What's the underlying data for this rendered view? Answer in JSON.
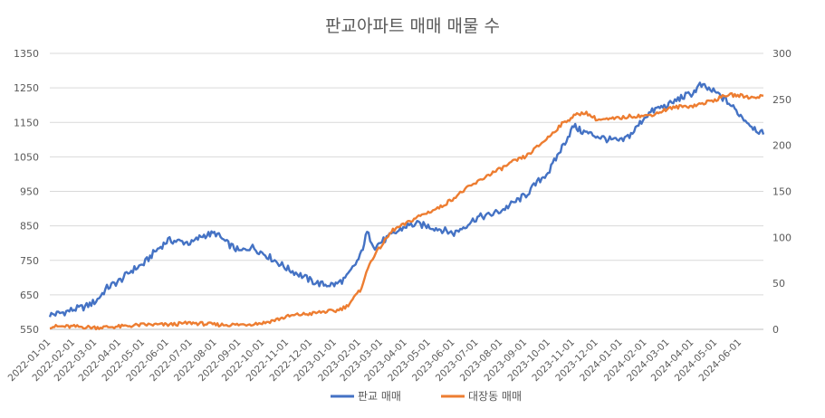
{
  "chart_data": {
    "type": "line",
    "title": "판교아파트 매매 매물 수",
    "xlabel": "",
    "ylabel": "",
    "x_ticks": [
      "2022-01-01",
      "2022-02-01",
      "2022-03-01",
      "2022-04-01",
      "2022-05-01",
      "2022-06-01",
      "2022-07-01",
      "2022-08-01",
      "2022-09-01",
      "2022-10-01",
      "2022-11-01",
      "2022-12-01",
      "2023-01-01",
      "2023-02-01",
      "2023-03-01",
      "2023-04-01",
      "2023-05-01",
      "2023-06-01",
      "2023-07-01",
      "2023-08-01",
      "2023-09-01",
      "2023-10-01",
      "2023-11-01",
      "2023-12-01",
      "2024-01-01",
      "2024-02-01",
      "2024-03-01",
      "2024-04-01",
      "2024-05-01",
      "2024-06-01"
    ],
    "x_range": [
      "2022-01-01",
      "2024-06-30"
    ],
    "y_left": {
      "ticks": [
        550,
        650,
        750,
        850,
        950,
        1050,
        1150,
        1250,
        1350
      ],
      "range": [
        550,
        1350
      ]
    },
    "y_right": {
      "ticks": [
        0,
        50,
        100,
        150,
        200,
        250,
        300
      ],
      "range": [
        0,
        300
      ]
    },
    "grid": true,
    "legend_position": "bottom",
    "series": [
      {
        "name": "판교 매매",
        "axis": "left",
        "color": "#4472C4",
        "points": [
          [
            "2022-01-01",
            592
          ],
          [
            "2022-01-10",
            595
          ],
          [
            "2022-01-20",
            600
          ],
          [
            "2022-02-01",
            608
          ],
          [
            "2022-02-15",
            615
          ],
          [
            "2022-03-01",
            632
          ],
          [
            "2022-03-15",
            670
          ],
          [
            "2022-04-01",
            692
          ],
          [
            "2022-04-15",
            720
          ],
          [
            "2022-05-01",
            740
          ],
          [
            "2022-05-15",
            775
          ],
          [
            "2022-06-01",
            808
          ],
          [
            "2022-06-15",
            805
          ],
          [
            "2022-07-01",
            800
          ],
          [
            "2022-07-15",
            822
          ],
          [
            "2022-08-01",
            828
          ],
          [
            "2022-08-15",
            800
          ],
          [
            "2022-09-01",
            775
          ],
          [
            "2022-09-15",
            790
          ],
          [
            "2022-10-01",
            770
          ],
          [
            "2022-10-15",
            750
          ],
          [
            "2022-11-01",
            725
          ],
          [
            "2022-11-15",
            710
          ],
          [
            "2022-12-01",
            690
          ],
          [
            "2022-12-15",
            680
          ],
          [
            "2023-01-01",
            680
          ],
          [
            "2023-01-15",
            700
          ],
          [
            "2023-02-01",
            760
          ],
          [
            "2023-02-10",
            830
          ],
          [
            "2023-02-20",
            790
          ],
          [
            "2023-03-01",
            805
          ],
          [
            "2023-03-15",
            825
          ],
          [
            "2023-04-01",
            850
          ],
          [
            "2023-04-15",
            855
          ],
          [
            "2023-05-01",
            848
          ],
          [
            "2023-05-15",
            840
          ],
          [
            "2023-06-01",
            828
          ],
          [
            "2023-06-15",
            850
          ],
          [
            "2023-07-01",
            875
          ],
          [
            "2023-07-15",
            880
          ],
          [
            "2023-08-01",
            895
          ],
          [
            "2023-08-15",
            915
          ],
          [
            "2023-09-01",
            940
          ],
          [
            "2023-09-15",
            975
          ],
          [
            "2023-10-01",
            1010
          ],
          [
            "2023-10-15",
            1070
          ],
          [
            "2023-11-01",
            1140
          ],
          [
            "2023-11-10",
            1125
          ],
          [
            "2023-12-01",
            1110
          ],
          [
            "2023-12-15",
            1100
          ],
          [
            "2024-01-01",
            1095
          ],
          [
            "2024-01-15",
            1120
          ],
          [
            "2024-02-01",
            1170
          ],
          [
            "2024-02-15",
            1190
          ],
          [
            "2024-03-01",
            1200
          ],
          [
            "2024-03-15",
            1220
          ],
          [
            "2024-04-01",
            1235
          ],
          [
            "2024-04-10",
            1258
          ],
          [
            "2024-05-01",
            1235
          ],
          [
            "2024-05-15",
            1210
          ],
          [
            "2024-06-01",
            1170
          ],
          [
            "2024-06-15",
            1140
          ],
          [
            "2024-06-30",
            1115
          ]
        ]
      },
      {
        "name": "대장동 매매",
        "axis": "right",
        "color": "#ED7D31",
        "points": [
          [
            "2022-01-01",
            3
          ],
          [
            "2022-02-01",
            3
          ],
          [
            "2022-03-01",
            2
          ],
          [
            "2022-04-01",
            3
          ],
          [
            "2022-05-01",
            5
          ],
          [
            "2022-06-01",
            5
          ],
          [
            "2022-07-01",
            7
          ],
          [
            "2022-08-01",
            5
          ],
          [
            "2022-09-01",
            5
          ],
          [
            "2022-10-01",
            7
          ],
          [
            "2022-10-15",
            10
          ],
          [
            "2022-11-01",
            14
          ],
          [
            "2022-11-15",
            16
          ],
          [
            "2022-12-01",
            17
          ],
          [
            "2022-12-15",
            19
          ],
          [
            "2023-01-01",
            20
          ],
          [
            "2023-01-15",
            25
          ],
          [
            "2023-02-01",
            42
          ],
          [
            "2023-02-15",
            75
          ],
          [
            "2023-03-01",
            92
          ],
          [
            "2023-03-15",
            108
          ],
          [
            "2023-04-01",
            115
          ],
          [
            "2023-04-15",
            122
          ],
          [
            "2023-05-01",
            128
          ],
          [
            "2023-05-15",
            133
          ],
          [
            "2023-06-01",
            143
          ],
          [
            "2023-06-15",
            152
          ],
          [
            "2023-07-01",
            160
          ],
          [
            "2023-07-15",
            168
          ],
          [
            "2023-08-01",
            175
          ],
          [
            "2023-08-15",
            182
          ],
          [
            "2023-09-01",
            188
          ],
          [
            "2023-09-15",
            198
          ],
          [
            "2023-10-01",
            210
          ],
          [
            "2023-10-15",
            222
          ],
          [
            "2023-11-01",
            232
          ],
          [
            "2023-11-15",
            236
          ],
          [
            "2023-12-01",
            228
          ],
          [
            "2023-12-15",
            228
          ],
          [
            "2024-01-01",
            230
          ],
          [
            "2024-01-15",
            232
          ],
          [
            "2024-02-01",
            232
          ],
          [
            "2024-02-15",
            235
          ],
          [
            "2024-03-01",
            240
          ],
          [
            "2024-03-15",
            242
          ],
          [
            "2024-04-01",
            243
          ],
          [
            "2024-04-15",
            246
          ],
          [
            "2024-05-01",
            250
          ],
          [
            "2024-05-15",
            255
          ],
          [
            "2024-06-01",
            254
          ],
          [
            "2024-06-15",
            252
          ],
          [
            "2024-06-30",
            254
          ]
        ]
      }
    ]
  }
}
